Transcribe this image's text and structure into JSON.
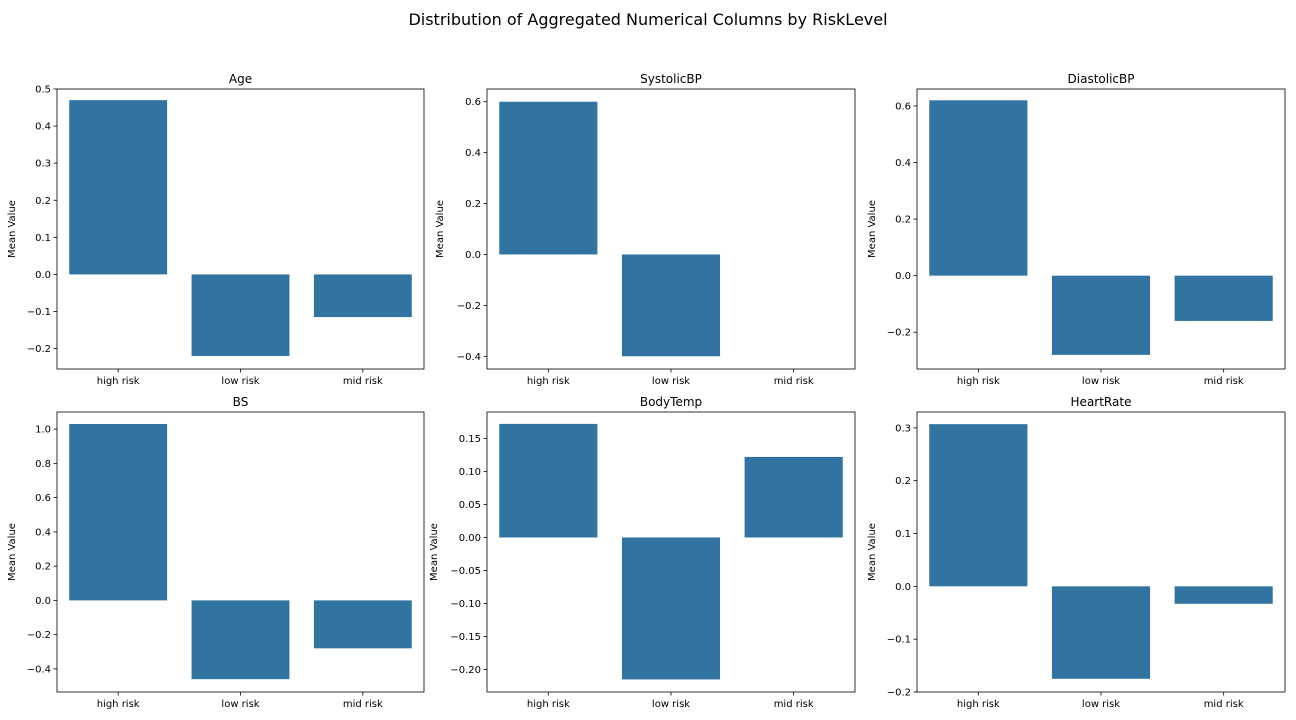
{
  "title": "Distribution of Aggregated Numerical Columns by RiskLevel",
  "colors": {
    "bar": "#3274a1",
    "axis": "#000000"
  },
  "chart_data": [
    {
      "type": "bar",
      "title": "Age",
      "xlabel": "",
      "ylabel": "Mean Value",
      "categories": [
        "high risk",
        "low risk",
        "mid risk"
      ],
      "values": [
        0.47,
        -0.22,
        -0.115
      ],
      "ylim": [
        -0.255,
        0.5
      ],
      "yticks": [
        -0.2,
        -0.1,
        0.0,
        0.1,
        0.2,
        0.3,
        0.4,
        0.5
      ],
      "ytick_labels": [
        "−0.2",
        "−0.1",
        "0.0",
        "0.1",
        "0.2",
        "0.3",
        "0.4",
        "0.5"
      ]
    },
    {
      "type": "bar",
      "title": "SystolicBP",
      "xlabel": "",
      "ylabel": "Mean Value",
      "categories": [
        "high risk",
        "low risk",
        "mid risk"
      ],
      "values": [
        0.6,
        -0.4,
        0.0
      ],
      "ylim": [
        -0.45,
        0.65
      ],
      "yticks": [
        -0.4,
        -0.2,
        0.0,
        0.2,
        0.4,
        0.6
      ],
      "ytick_labels": [
        "−0.4",
        "−0.2",
        "0.0",
        "0.2",
        "0.4",
        "0.6"
      ]
    },
    {
      "type": "bar",
      "title": "DiastolicBP",
      "xlabel": "",
      "ylabel": "Mean Value",
      "categories": [
        "high risk",
        "low risk",
        "mid risk"
      ],
      "values": [
        0.62,
        -0.28,
        -0.16
      ],
      "ylim": [
        -0.33,
        0.66
      ],
      "yticks": [
        -0.2,
        0.0,
        0.2,
        0.4,
        0.6
      ],
      "ytick_labels": [
        "−0.2",
        "0.0",
        "0.2",
        "0.4",
        "0.6"
      ]
    },
    {
      "type": "bar",
      "title": "BS",
      "xlabel": "",
      "ylabel": "Mean Value",
      "categories": [
        "high risk",
        "low risk",
        "mid risk"
      ],
      "values": [
        1.03,
        -0.46,
        -0.28
      ],
      "ylim": [
        -0.535,
        1.1
      ],
      "yticks": [
        -0.4,
        -0.2,
        0.0,
        0.2,
        0.4,
        0.6,
        0.8,
        1.0
      ],
      "ytick_labels": [
        "−0.4",
        "−0.2",
        "0.0",
        "0.2",
        "0.4",
        "0.6",
        "0.8",
        "1.0"
      ]
    },
    {
      "type": "bar",
      "title": "BodyTemp",
      "xlabel": "",
      "ylabel": "Mean Value",
      "categories": [
        "high risk",
        "low risk",
        "mid risk"
      ],
      "values": [
        0.172,
        -0.215,
        0.122
      ],
      "ylim": [
        -0.234,
        0.19
      ],
      "yticks": [
        -0.2,
        -0.15,
        -0.1,
        -0.05,
        0.0,
        0.05,
        0.1,
        0.15
      ],
      "ytick_labels": [
        "−0.20",
        "−0.15",
        "−0.10",
        "−0.05",
        "0.00",
        "0.05",
        "0.10",
        "0.15"
      ]
    },
    {
      "type": "bar",
      "title": "HeartRate",
      "xlabel": "",
      "ylabel": "Mean Value",
      "categories": [
        "high risk",
        "low risk",
        "mid risk"
      ],
      "values": [
        0.307,
        -0.175,
        -0.033
      ],
      "ylim": [
        -0.2,
        0.33
      ],
      "yticks": [
        -0.2,
        -0.1,
        0.0,
        0.1,
        0.2,
        0.3
      ],
      "ytick_labels": [
        "−0.2",
        "−0.1",
        "0.0",
        "0.1",
        "0.2",
        "0.3"
      ]
    }
  ]
}
